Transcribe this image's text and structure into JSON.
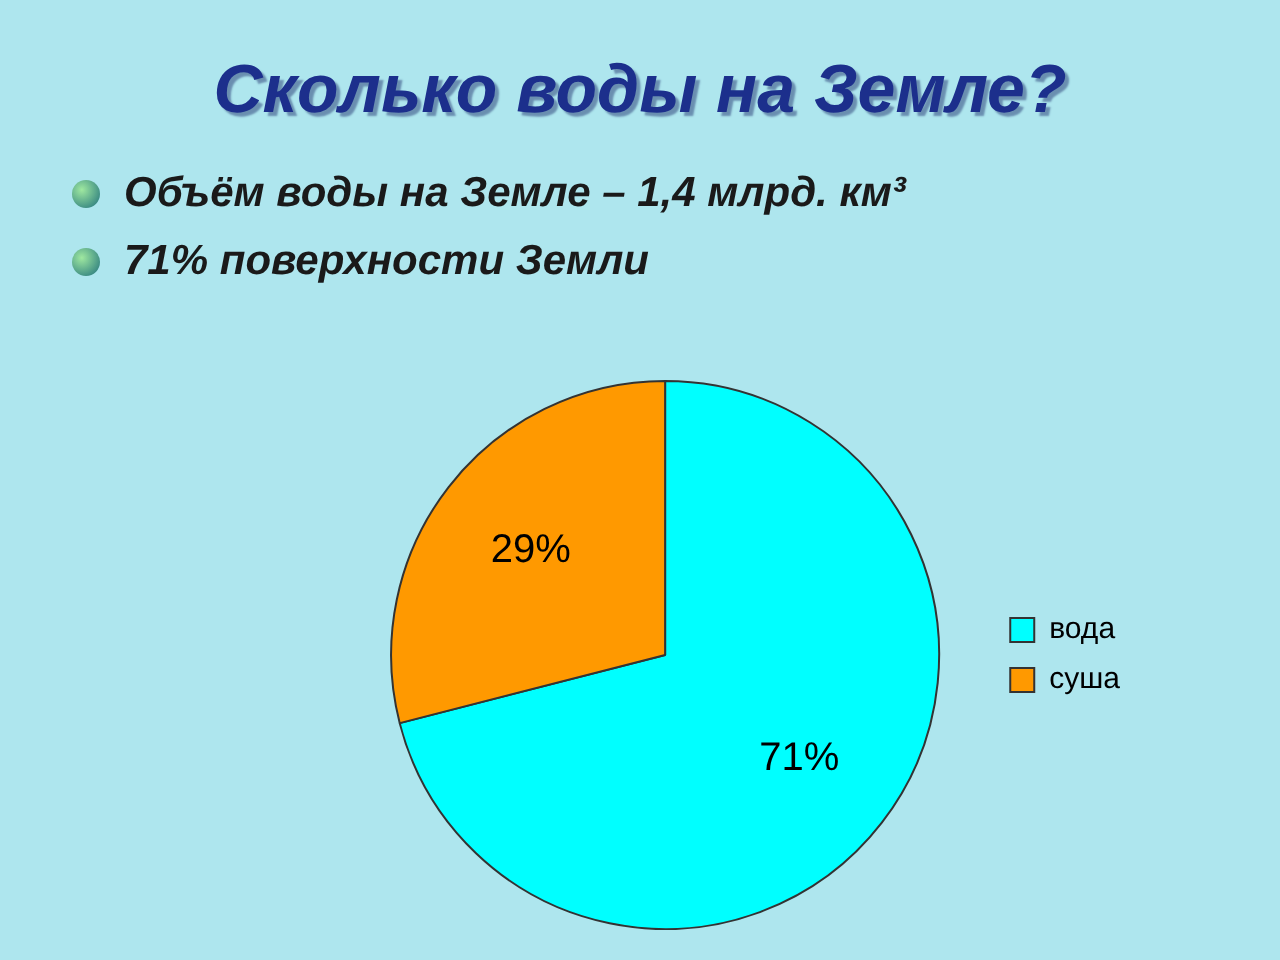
{
  "chart_data": {
    "type": "pie",
    "title": "Сколько воды на Земле?",
    "annotations": [
      "Объём воды на Земле – 1,4 млрд. км³",
      "71% поверхности Земли"
    ],
    "categories": [
      "вода",
      "суша"
    ],
    "values": [
      71,
      29
    ],
    "value_labels": [
      "71%",
      "29%"
    ],
    "colors": [
      "#00ffff",
      "#ff9900"
    ],
    "legend": "right"
  }
}
